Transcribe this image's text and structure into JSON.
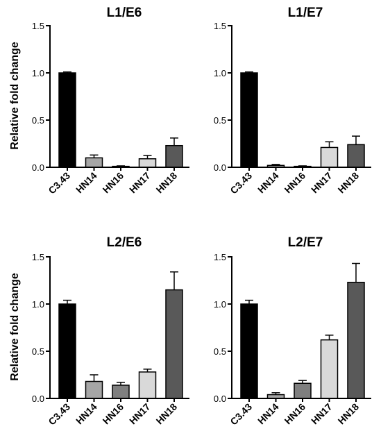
{
  "chart_data": [
    {
      "type": "bar",
      "title": "L1/E6",
      "ylabel": "Relative fold change",
      "xlabel": "",
      "ylim": [
        0,
        1.5
      ],
      "yticks": [
        "0.0",
        "0.5",
        "1.0",
        "1.5"
      ],
      "categories": [
        "C3.43",
        "HN14",
        "HN16",
        "HN17",
        "HN18"
      ],
      "values": [
        1.0,
        0.1,
        0.01,
        0.09,
        0.23
      ],
      "errors": [
        0.01,
        0.03,
        0.005,
        0.035,
        0.08
      ],
      "colors": [
        "#000000",
        "#a6a6a6",
        "#7f7f7f",
        "#d9d9d9",
        "#595959"
      ]
    },
    {
      "type": "bar",
      "title": "L1/E7",
      "ylabel": "",
      "xlabel": "",
      "ylim": [
        0,
        1.5
      ],
      "yticks": [
        "0.0",
        "0.5",
        "1.0",
        "1.5"
      ],
      "categories": [
        "C3.43",
        "HN14",
        "HN16",
        "HN17",
        "HN18"
      ],
      "values": [
        1.0,
        0.02,
        0.01,
        0.21,
        0.24
      ],
      "errors": [
        0.01,
        0.01,
        0.005,
        0.06,
        0.09
      ],
      "colors": [
        "#000000",
        "#a6a6a6",
        "#7f7f7f",
        "#d9d9d9",
        "#595959"
      ]
    },
    {
      "type": "bar",
      "title": "L2/E6",
      "ylabel": "Relative fold change",
      "xlabel": "",
      "ylim": [
        0,
        1.5
      ],
      "yticks": [
        "0.0",
        "0.5",
        "1.0",
        "1.5"
      ],
      "categories": [
        "C3.43",
        "HN14",
        "HN16",
        "HN17",
        "HN18"
      ],
      "values": [
        1.0,
        0.18,
        0.14,
        0.28,
        1.15
      ],
      "errors": [
        0.04,
        0.07,
        0.03,
        0.03,
        0.19
      ],
      "colors": [
        "#000000",
        "#a6a6a6",
        "#7f7f7f",
        "#d9d9d9",
        "#595959"
      ]
    },
    {
      "type": "bar",
      "title": "L2/E7",
      "ylabel": "",
      "xlabel": "",
      "ylim": [
        0,
        1.5
      ],
      "yticks": [
        "0.0",
        "0.5",
        "1.0",
        "1.5"
      ],
      "categories": [
        "C3.43",
        "HN14",
        "HN16",
        "HN17",
        "HN18"
      ],
      "values": [
        1.0,
        0.04,
        0.16,
        0.62,
        1.23
      ],
      "errors": [
        0.04,
        0.02,
        0.03,
        0.05,
        0.2
      ],
      "colors": [
        "#000000",
        "#a6a6a6",
        "#7f7f7f",
        "#d9d9d9",
        "#595959"
      ]
    }
  ]
}
